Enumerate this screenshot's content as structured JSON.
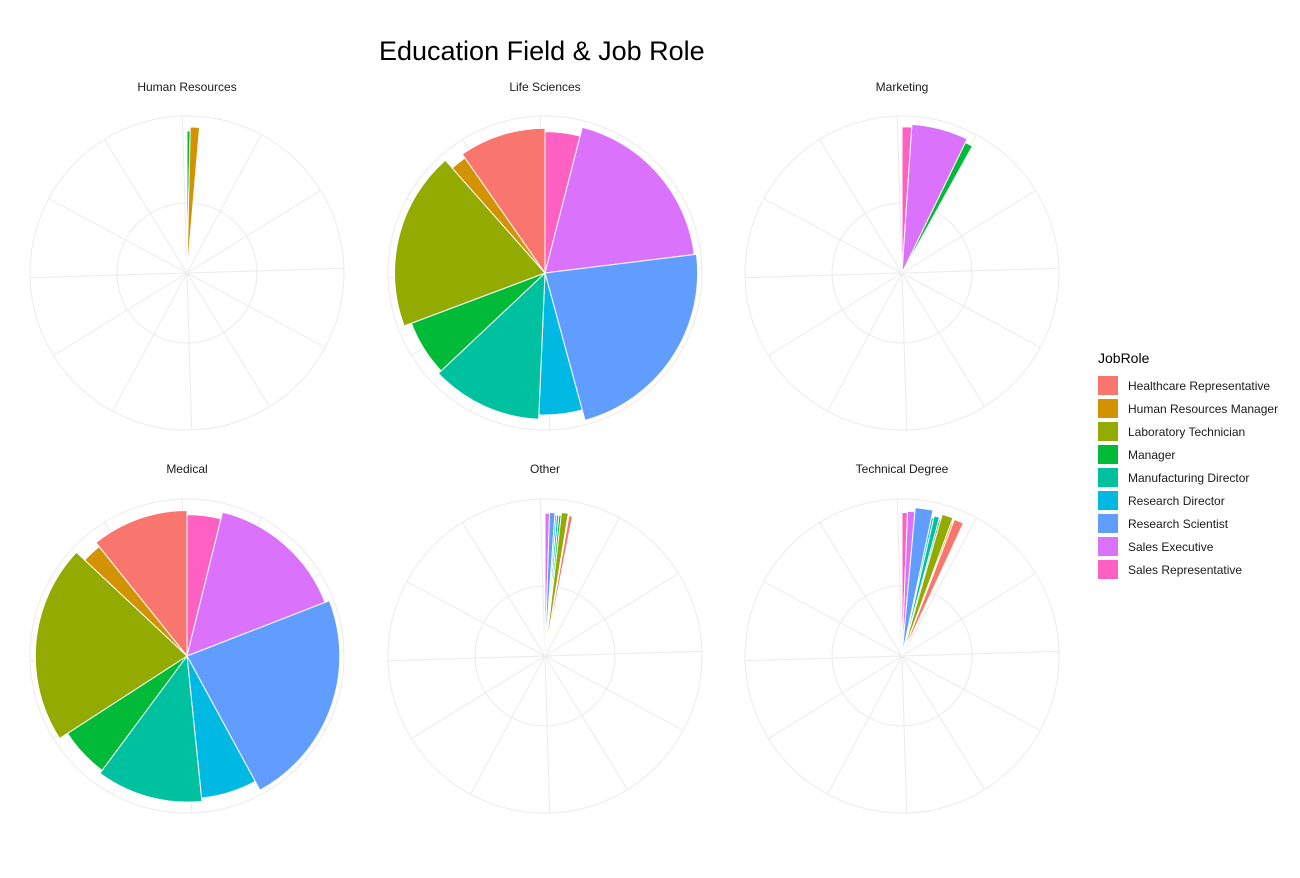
{
  "chart_data": {
    "type": "pie",
    "title": "Education Field & Job Role",
    "legend": {
      "title": "JobRole",
      "placement": "right",
      "entries": [
        "Healthcare Representative",
        "Human Resources Manager",
        "Laboratory Technician",
        "Manager",
        "Manufacturing Director",
        "Research Director",
        "Research Scientist",
        "Sales Executive",
        "Sales Representative"
      ]
    },
    "colors": {
      "Healthcare Representative": "#F8766D",
      "Human Resources Manager": "#D39200",
      "Laboratory Technician": "#93AA00",
      "Manager": "#00BA38",
      "Manufacturing Director": "#00C19F",
      "Research Director": "#00B9E3",
      "Research Scientist": "#619CFF",
      "Sales Executive": "#DB72FB",
      "Sales Representative": "#FF61C3"
    },
    "grid": true,
    "series_order": [
      "Sales Representative",
      "Sales Executive",
      "Research Scientist",
      "Research Director",
      "Manufacturing Director",
      "Manager",
      "Laboratory Technician",
      "Human Resources Manager",
      "Healthcare Representative"
    ],
    "facets": [
      {
        "name": "Human Resources",
        "counts": {
          "Sales Representative": 0,
          "Sales Executive": 0,
          "Research Scientist": 0,
          "Research Director": 0,
          "Manufacturing Director": 0,
          "Manager": 7,
          "Laboratory Technician": 0,
          "Human Resources Manager": 20,
          "Healthcare Representative": 0
        }
      },
      {
        "name": "Life Sciences",
        "counts": {
          "Sales Representative": 26,
          "Sales Executive": 124,
          "Research Scientist": 148,
          "Research Director": 32,
          "Manufacturing Director": 80,
          "Manager": 41,
          "Laboratory Technician": 125,
          "Human Resources Manager": 12,
          "Healthcare Representative": 63
        }
      },
      {
        "name": "Marketing",
        "counts": {
          "Sales Representative": 21,
          "Sales Executive": 121,
          "Research Scientist": 0,
          "Research Director": 0,
          "Manufacturing Director": 0,
          "Manager": 17,
          "Laboratory Technician": 0,
          "Human Resources Manager": 0,
          "Healthcare Representative": 0
        }
      },
      {
        "name": "Medical",
        "counts": {
          "Sales Representative": 19,
          "Sales Executive": 75,
          "Research Scientist": 113,
          "Research Director": 31,
          "Manufacturing Director": 58,
          "Manager": 28,
          "Laboratory Technician": 104,
          "Human Resources Manager": 11,
          "Healthcare Representative": 53
        }
      },
      {
        "name": "Other",
        "counts": {
          "Sales Representative": 0,
          "Sales Executive": 10,
          "Research Scientist": 12,
          "Research Director": 4,
          "Manufacturing Director": 5,
          "Manager": 5,
          "Laboratory Technician": 15,
          "Human Resources Manager": 2,
          "Healthcare Representative": 8
        }
      },
      {
        "name": "Technical Degree",
        "counts": {
          "Sales Representative": 12,
          "Sales Executive": 16,
          "Research Scientist": 38,
          "Research Director": 5,
          "Manufacturing Director": 12,
          "Manager": 4,
          "Laboratory Technician": 24,
          "Human Resources Manager": 4,
          "Healthcare Representative": 21
        }
      }
    ]
  }
}
